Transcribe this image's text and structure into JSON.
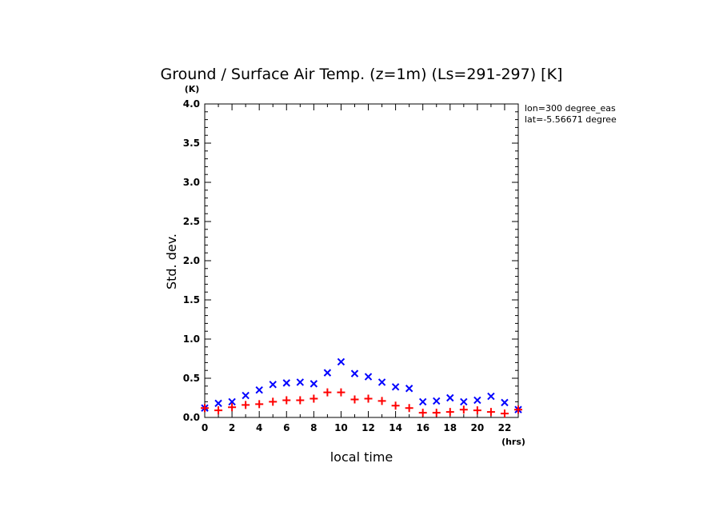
{
  "chart_data": {
    "type": "scatter",
    "title": "Ground / Surface Air Temp. (z=1m) (Ls=291-297) [K]",
    "xlabel": "local time",
    "ylabel": "Std. dev.",
    "x_unit": "(hrs)",
    "y_unit": "(K)",
    "xlim": [
      0,
      23
    ],
    "ylim": [
      0,
      4
    ],
    "x_ticks": [
      "0",
      "2",
      "4",
      "6",
      "8",
      "10",
      "12",
      "14",
      "16",
      "18",
      "20",
      "22"
    ],
    "y_ticks": [
      "0.0",
      "0.5",
      "1.0",
      "1.5",
      "2.0",
      "2.5",
      "3.0",
      "3.5",
      "4.0"
    ],
    "annotations": [
      "lon=300 degree_eas",
      "lat=-5.56671 degree"
    ],
    "x": [
      0,
      1,
      2,
      3,
      4,
      5,
      6,
      7,
      8,
      9,
      10,
      11,
      12,
      13,
      14,
      15,
      16,
      17,
      18,
      19,
      20,
      21,
      22,
      23
    ],
    "series": [
      {
        "marker": "x",
        "color": "#0000ff",
        "values": [
          0.12,
          0.18,
          0.2,
          0.28,
          0.35,
          0.42,
          0.44,
          0.45,
          0.43,
          0.57,
          0.71,
          0.56,
          0.52,
          0.45,
          0.39,
          0.37,
          0.2,
          0.21,
          0.25,
          0.2,
          0.22,
          0.27,
          0.19,
          0.1
        ]
      },
      {
        "marker": "+",
        "color": "#ff0000",
        "values": [
          0.12,
          0.09,
          0.13,
          0.16,
          0.17,
          0.2,
          0.22,
          0.22,
          0.24,
          0.32,
          0.32,
          0.23,
          0.24,
          0.21,
          0.15,
          0.12,
          0.06,
          0.06,
          0.07,
          0.1,
          0.09,
          0.07,
          0.05,
          0.1
        ]
      }
    ]
  }
}
